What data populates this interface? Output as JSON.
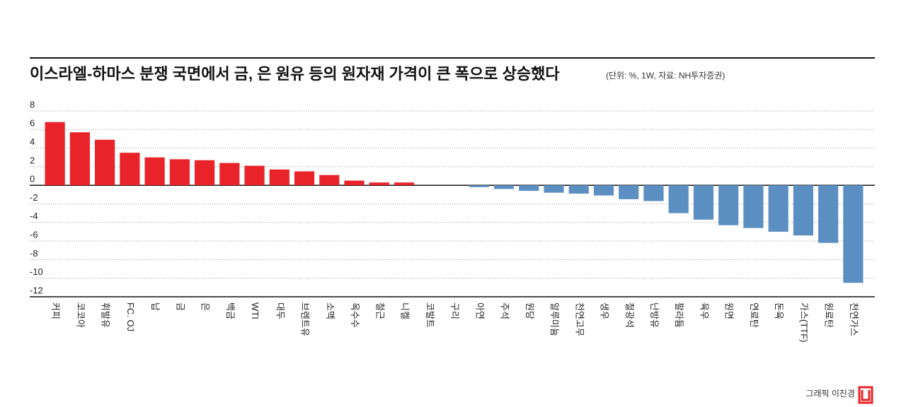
{
  "chart_data": {
    "type": "bar",
    "title": "이스라엘-하마스 분쟁 국면에서 금, 은 원유 등의 원자재 가격이 큰 폭으로 상승했다",
    "subtitle": "(단위: %, 1W, 자료: NH투자증권)",
    "credit": "그래픽 이진경",
    "categories": [
      "커피",
      "코코아",
      "휘발유",
      "FC. OJ",
      "납",
      "금",
      "은",
      "백금",
      "WTI",
      "대두",
      "브렌트유",
      "소맥",
      "옥수수",
      "철근",
      "니켈",
      "코발트",
      "구리",
      "아연",
      "주석",
      "원당",
      "알루미늄",
      "천연고무",
      "생우",
      "철광석",
      "난방유",
      "팔라듐",
      "육우",
      "원면",
      "연료탄",
      "돈육",
      "가스(TTF)",
      "원료탄",
      "천연가스"
    ],
    "values": [
      6.8,
      5.7,
      4.9,
      3.5,
      3.0,
      2.8,
      2.7,
      2.4,
      2.1,
      1.7,
      1.5,
      1.1,
      0.5,
      0.3,
      0.3,
      0,
      0,
      -0.2,
      -0.4,
      -0.6,
      -0.8,
      -0.9,
      -1.1,
      -1.5,
      -1.7,
      -3.0,
      -3.7,
      -4.3,
      -4.6,
      -5.0,
      -5.4,
      -6.2,
      -10.5
    ],
    "positive_color": "#e8242a",
    "negative_color": "#5b8fc2",
    "ylim": [
      -12,
      8
    ],
    "yticks": [
      8,
      6,
      4,
      2,
      0,
      -2,
      -4,
      -6,
      -8,
      -10,
      -12
    ],
    "grid": true
  }
}
